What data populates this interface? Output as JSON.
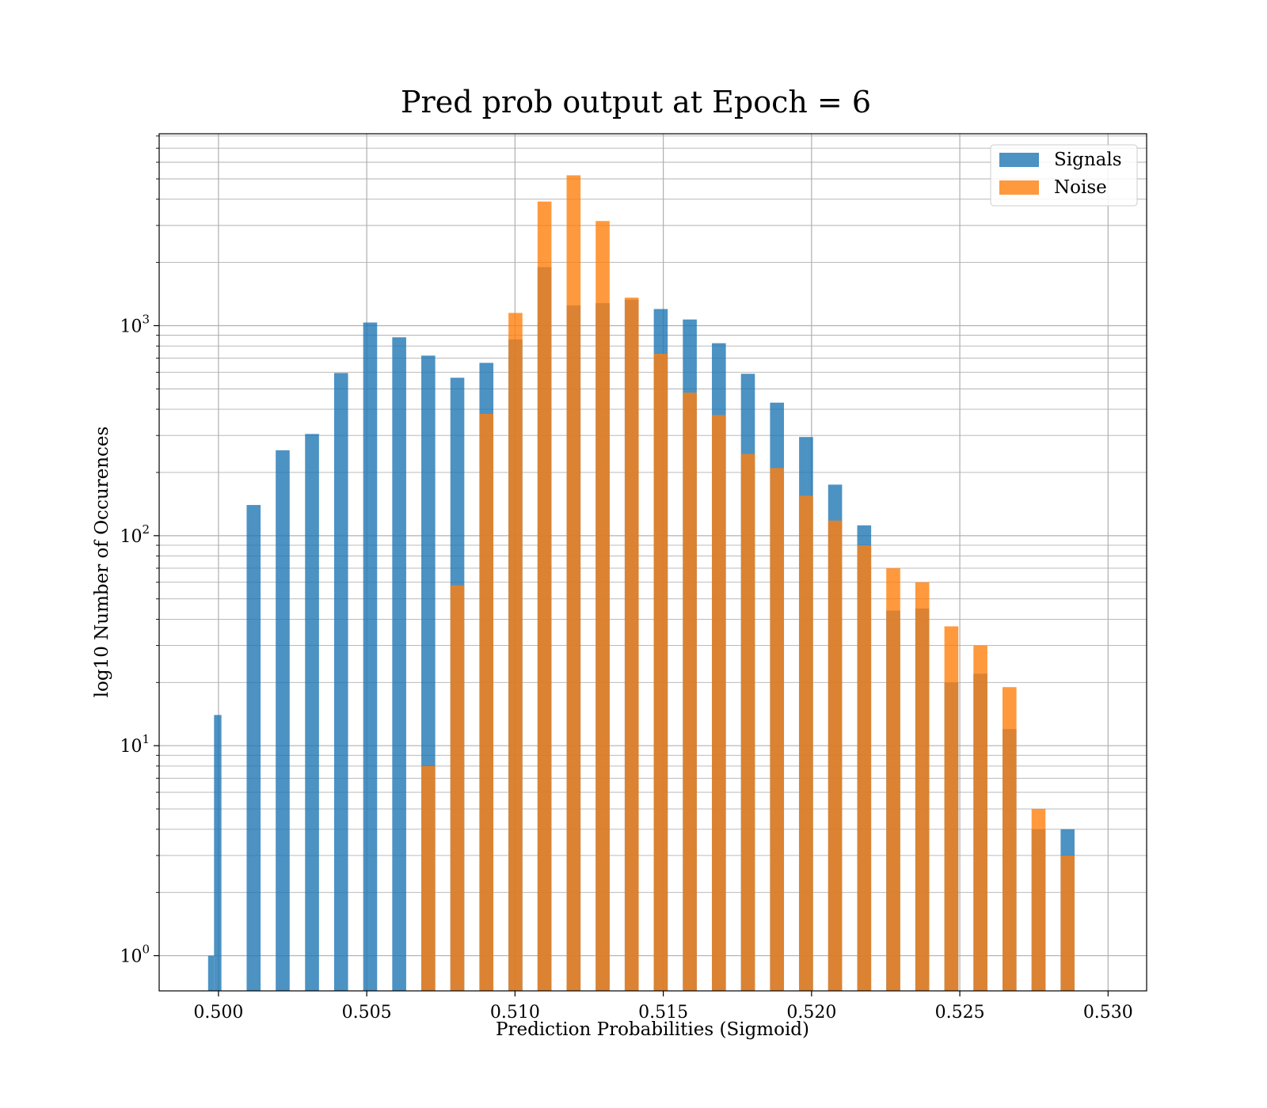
{
  "chart_data": {
    "type": "bar",
    "title": "Pred prob output at Epoch = 6",
    "xlabel": "Prediction Probabilities (Sigmoid)",
    "ylabel": "log10 Number of Occurences",
    "yscale": "log",
    "xlim": [
      0.498,
      0.5313
    ],
    "ylim": [
      0.68,
      8200
    ],
    "xticks": [
      "0.500",
      "0.505",
      "0.510",
      "0.515",
      "0.520",
      "0.525",
      "0.530"
    ],
    "xtick_values": [
      0.5,
      0.505,
      0.51,
      0.515,
      0.52,
      0.525,
      0.53
    ],
    "yticks": [
      {
        "value": 1,
        "base": "10",
        "exp": "0"
      },
      {
        "value": 10,
        "base": "10",
        "exp": "1"
      },
      {
        "value": 100,
        "base": "10",
        "exp": "2"
      },
      {
        "value": 1000,
        "base": "10",
        "exp": "3"
      }
    ],
    "grid": true,
    "legend_position": "top-right",
    "series": [
      {
        "name": "Signals",
        "color": "#1f77b4",
        "opacity": 0.8,
        "bins": [
          {
            "x0": 0.49965,
            "x1": 0.49985,
            "value": 1
          },
          {
            "x0": 0.49985,
            "x1": 0.5001,
            "value": 14
          },
          {
            "x0": 0.50095,
            "x1": 0.50142,
            "value": 140
          },
          {
            "x0": 0.50142,
            "x1": 0.50142,
            "value": 0
          },
          {
            "x0": 0.50193,
            "x1": 0.5024,
            "value": 255
          },
          {
            "x0": 0.50292,
            "x1": 0.50339,
            "value": 305
          },
          {
            "x0": 0.5039,
            "x1": 0.50437,
            "value": 595
          },
          {
            "x0": 0.50488,
            "x1": 0.50535,
            "value": 1035
          },
          {
            "x0": 0.50586,
            "x1": 0.50633,
            "value": 880
          },
          {
            "x0": 0.50684,
            "x1": 0.50731,
            "value": 720
          },
          {
            "x0": 0.50782,
            "x1": 0.50829,
            "value": 565
          },
          {
            "x0": 0.5088,
            "x1": 0.50927,
            "value": 665
          },
          {
            "x0": 0.50978,
            "x1": 0.51025,
            "value": 860
          },
          {
            "x0": 0.51076,
            "x1": 0.51123,
            "value": 1900
          },
          {
            "x0": 0.51174,
            "x1": 0.51221,
            "value": 1250
          },
          {
            "x0": 0.51272,
            "x1": 0.51319,
            "value": 1280
          },
          {
            "x0": 0.5137,
            "x1": 0.51417,
            "value": 1330
          },
          {
            "x0": 0.51468,
            "x1": 0.51515,
            "value": 1200
          },
          {
            "x0": 0.51566,
            "x1": 0.51613,
            "value": 1070
          },
          {
            "x0": 0.51664,
            "x1": 0.51711,
            "value": 825
          },
          {
            "x0": 0.51762,
            "x1": 0.51809,
            "value": 590
          },
          {
            "x0": 0.5186,
            "x1": 0.51907,
            "value": 430
          },
          {
            "x0": 0.51958,
            "x1": 0.52005,
            "value": 295
          },
          {
            "x0": 0.52056,
            "x1": 0.52103,
            "value": 175
          },
          {
            "x0": 0.52154,
            "x1": 0.52201,
            "value": 112
          },
          {
            "x0": 0.52252,
            "x1": 0.52299,
            "value": 44
          },
          {
            "x0": 0.5235,
            "x1": 0.52397,
            "value": 45
          },
          {
            "x0": 0.52448,
            "x1": 0.52495,
            "value": 20
          },
          {
            "x0": 0.52546,
            "x1": 0.52593,
            "value": 22
          },
          {
            "x0": 0.52644,
            "x1": 0.52691,
            "value": 12
          },
          {
            "x0": 0.52742,
            "x1": 0.52789,
            "value": 4
          },
          {
            "x0": 0.5284,
            "x1": 0.52887,
            "value": 4
          }
        ]
      },
      {
        "name": "Noise",
        "color": "#ff7f0e",
        "opacity": 0.8,
        "bins": [
          {
            "x0": 0.50684,
            "x1": 0.50731,
            "value": 8
          },
          {
            "x0": 0.50782,
            "x1": 0.50829,
            "value": 58
          },
          {
            "x0": 0.5088,
            "x1": 0.50927,
            "value": 380
          },
          {
            "x0": 0.50978,
            "x1": 0.51025,
            "value": 1150
          },
          {
            "x0": 0.51076,
            "x1": 0.51123,
            "value": 3900
          },
          {
            "x0": 0.51174,
            "x1": 0.51221,
            "value": 5200
          },
          {
            "x0": 0.51272,
            "x1": 0.51319,
            "value": 3150
          },
          {
            "x0": 0.5137,
            "x1": 0.51417,
            "value": 1360
          },
          {
            "x0": 0.51468,
            "x1": 0.51515,
            "value": 735
          },
          {
            "x0": 0.51566,
            "x1": 0.51613,
            "value": 480
          },
          {
            "x0": 0.51664,
            "x1": 0.51711,
            "value": 375
          },
          {
            "x0": 0.51762,
            "x1": 0.51809,
            "value": 245
          },
          {
            "x0": 0.5186,
            "x1": 0.51907,
            "value": 210
          },
          {
            "x0": 0.51958,
            "x1": 0.52005,
            "value": 155
          },
          {
            "x0": 0.52056,
            "x1": 0.52103,
            "value": 118
          },
          {
            "x0": 0.52154,
            "x1": 0.52201,
            "value": 90
          },
          {
            "x0": 0.52252,
            "x1": 0.52299,
            "value": 70
          },
          {
            "x0": 0.5235,
            "x1": 0.52397,
            "value": 60
          },
          {
            "x0": 0.52448,
            "x1": 0.52495,
            "value": 37
          },
          {
            "x0": 0.52546,
            "x1": 0.52593,
            "value": 30
          },
          {
            "x0": 0.52644,
            "x1": 0.52691,
            "value": 19
          },
          {
            "x0": 0.52742,
            "x1": 0.52789,
            "value": 5
          },
          {
            "x0": 0.5284,
            "x1": 0.52887,
            "value": 3
          }
        ]
      }
    ]
  }
}
